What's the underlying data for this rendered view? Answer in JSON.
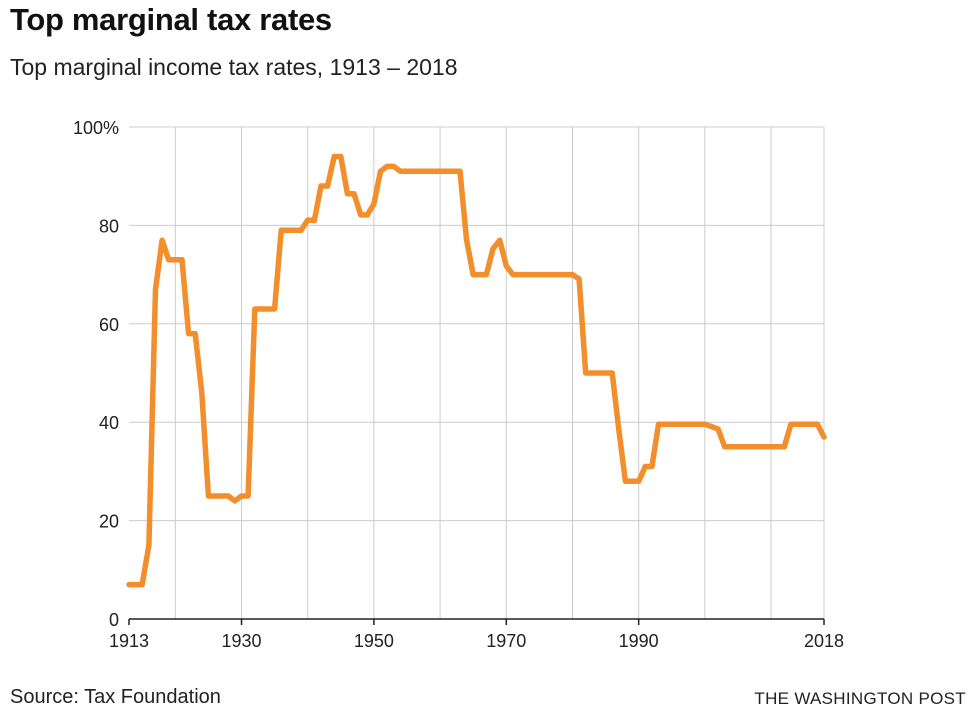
{
  "title": "Top marginal tax rates",
  "subtitle": "Top marginal income tax rates, 1913 – 2018",
  "source": "Source: Tax Foundation",
  "credit": "THE WASHINGTON POST",
  "colors": {
    "line": "#F28E2B",
    "grid": "#cccccc",
    "axis": "#222222"
  },
  "chart_data": {
    "type": "line",
    "title": "Top marginal tax rates",
    "subtitle": "Top marginal income tax rates, 1913 – 2018",
    "xlabel": "",
    "ylabel": "",
    "xlim": [
      1913,
      2018
    ],
    "ylim": [
      0,
      100
    ],
    "x_ticks": [
      1913,
      1930,
      1950,
      1970,
      1990,
      2018
    ],
    "x_tick_labels": [
      "1913",
      "1930",
      "1950",
      "1970",
      "1990",
      "2018"
    ],
    "x_gridlines": [
      1920,
      1930,
      1940,
      1950,
      1960,
      1970,
      1980,
      1990,
      2000,
      2010,
      2018
    ],
    "y_ticks": [
      0,
      20,
      40,
      60,
      80,
      100
    ],
    "y_tick_labels": [
      "0",
      "20",
      "40",
      "60",
      "80",
      "100%"
    ],
    "grid": true,
    "series": [
      {
        "x": [
          1913,
          1914,
          1915,
          1916,
          1917,
          1918,
          1919,
          1920,
          1921,
          1922,
          1923,
          1924,
          1925,
          1926,
          1927,
          1928,
          1929,
          1930,
          1931,
          1932,
          1933,
          1934,
          1935,
          1936,
          1937,
          1938,
          1939,
          1940,
          1941,
          1942,
          1943,
          1944,
          1945,
          1946,
          1947,
          1948,
          1949,
          1950,
          1951,
          1952,
          1953,
          1954,
          1955,
          1956,
          1957,
          1958,
          1959,
          1960,
          1961,
          1962,
          1963,
          1964,
          1965,
          1966,
          1967,
          1968,
          1969,
          1970,
          1971,
          1972,
          1973,
          1974,
          1975,
          1976,
          1977,
          1978,
          1979,
          1980,
          1981,
          1982,
          1983,
          1984,
          1985,
          1986,
          1987,
          1988,
          1989,
          1990,
          1991,
          1992,
          1993,
          1994,
          1995,
          1996,
          1997,
          1998,
          1999,
          2000,
          2001,
          2002,
          2003,
          2004,
          2005,
          2006,
          2007,
          2008,
          2009,
          2010,
          2011,
          2012,
          2013,
          2014,
          2015,
          2016,
          2017,
          2018
        ],
        "values": [
          7,
          7,
          7,
          15,
          67,
          77,
          73,
          73,
          73,
          58,
          58,
          46,
          25,
          25,
          25,
          25,
          24,
          25,
          25,
          63,
          63,
          63,
          63,
          79,
          79,
          79,
          79,
          81.1,
          81,
          88,
          88,
          94,
          94,
          86.45,
          86.45,
          82.13,
          82.13,
          84.36,
          91,
          92,
          92,
          91,
          91,
          91,
          91,
          91,
          91,
          91,
          91,
          91,
          91,
          77,
          70,
          70,
          70,
          75.25,
          77,
          71.75,
          70,
          70,
          70,
          70,
          70,
          70,
          70,
          70,
          70,
          70,
          69.13,
          50,
          50,
          50,
          50,
          50,
          38.5,
          28,
          28,
          28,
          31,
          31,
          39.6,
          39.6,
          39.6,
          39.6,
          39.6,
          39.6,
          39.6,
          39.6,
          39.1,
          38.6,
          35,
          35,
          35,
          35,
          35,
          35,
          35,
          35,
          35,
          35,
          39.6,
          39.6,
          39.6,
          39.6,
          39.6,
          37
        ]
      }
    ]
  }
}
